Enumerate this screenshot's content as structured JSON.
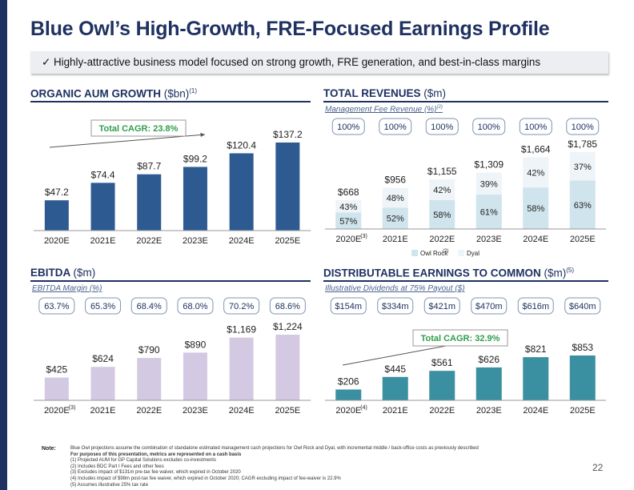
{
  "title": "Blue Owl’s High-Growth, FRE-Focused Earnings Profile",
  "banner": "✓ Highly-attractive business model focused on strong growth, FRE generation, and best-in-class margins",
  "colors": {
    "navy": "#1e3160",
    "bar_blue": "#2e5a92",
    "lavender": "#d3c9e3",
    "teal": "#3a8fa1",
    "owl_rock": "#cfe4ec",
    "dyal": "#eef4f8",
    "green": "#2e9e4a"
  },
  "sections": {
    "aum": {
      "title": "ORGANIC AUM GROWTH",
      "unit": "($bn)",
      "sup": "(1)"
    },
    "revenue": {
      "title": "TOTAL REVENUES",
      "unit": "($m)",
      "subhead": "Management Fee Revenue (%)",
      "subhead_sup": "(2)"
    },
    "ebitda": {
      "title": "EBITDA",
      "unit": "($m)",
      "subhead": "EBITDA Margin (%)"
    },
    "de": {
      "title": "DISTRIBUTABLE EARNINGS TO COMMON",
      "unit": "($m)",
      "sup": "(5)",
      "subhead": "Illustrative Dividends at 75% Payout ($)"
    }
  },
  "chart_data": [
    {
      "id": "aum",
      "type": "bar",
      "title": "ORGANIC AUM GROWTH ($bn)",
      "categories": [
        "2020E",
        "2021E",
        "2022E",
        "2023E",
        "2024E",
        "2025E"
      ],
      "values": [
        47.2,
        74.4,
        87.7,
        99.2,
        120.4,
        137.2
      ],
      "labels": [
        "$47.2",
        "$74.4",
        "$87.7",
        "$99.2",
        "$120.4",
        "$137.2"
      ],
      "ylim": [
        0,
        137.2
      ],
      "annotation": "Total CAGR: 23.8%"
    },
    {
      "id": "revenue",
      "type": "bar",
      "title": "TOTAL REVENUES ($m)",
      "categories": [
        "2020E",
        "2021E",
        "2022E",
        "2023E",
        "2024E",
        "2025E"
      ],
      "category_sup": [
        "(3)",
        "",
        "",
        "",
        "",
        ""
      ],
      "values": [
        668,
        956,
        1155,
        1309,
        1664,
        1785
      ],
      "labels": [
        "$668",
        "$956",
        "$1,155",
        "$1,309",
        "$1,664",
        "$1,785"
      ],
      "series": [
        {
          "name": "Owl Rock",
          "name_sup": "(2)",
          "values": [
            57,
            52,
            58,
            61,
            58,
            63
          ],
          "labels": [
            "57%",
            "52%",
            "58%",
            "61%",
            "58%",
            "63%"
          ]
        },
        {
          "name": "Dyal",
          "values": [
            43,
            48,
            42,
            39,
            42,
            37
          ],
          "labels": [
            "43%",
            "48%",
            "42%",
            "39%",
            "42%",
            "37%"
          ]
        }
      ],
      "mgmt_fee_pct": [
        "100%",
        "100%",
        "100%",
        "100%",
        "100%",
        "100%"
      ],
      "ylim": [
        0,
        1785
      ]
    },
    {
      "id": "ebitda",
      "type": "bar",
      "title": "EBITDA ($m)",
      "categories": [
        "2020E",
        "2021E",
        "2022E",
        "2023E",
        "2024E",
        "2025E"
      ],
      "category_sup": [
        "(3)",
        "",
        "",
        "",
        "",
        ""
      ],
      "values": [
        425,
        624,
        790,
        890,
        1169,
        1224
      ],
      "labels": [
        "$425",
        "$624",
        "$790",
        "$890",
        "$1,169",
        "$1,224"
      ],
      "margins": [
        "63.7%",
        "65.3%",
        "68.4%",
        "68.0%",
        "70.2%",
        "68.6%"
      ],
      "ylim": [
        0,
        1224
      ]
    },
    {
      "id": "de",
      "type": "bar",
      "title": "DISTRIBUTABLE EARNINGS TO COMMON ($m)",
      "categories": [
        "2020E",
        "2021E",
        "2022E",
        "2023E",
        "2024E",
        "2025E"
      ],
      "category_sup": [
        "(4)",
        "",
        "",
        "",
        "",
        ""
      ],
      "values": [
        206,
        445,
        561,
        626,
        821,
        853
      ],
      "labels": [
        "$206",
        "$445",
        "$561",
        "$626",
        "$821",
        "$853"
      ],
      "dividends": [
        "$154m",
        "$334m",
        "$421m",
        "$470m",
        "$616m",
        "$640m"
      ],
      "ylim": [
        0,
        853
      ],
      "annotation": "Total CAGR: 32.9%"
    }
  ],
  "note": {
    "label": "Note:",
    "lines": [
      "Blue Owl projections assume the combination of standalone estimated management cash projections for Owl Rock and Dyal, with incremental middle / back-office costs as previously described",
      "For purposes of this presentation, metrics are represented on a cash basis",
      "(1) Projected AUM for GP Capital Solutions excludes co-investments",
      "(2) Includes BDC Part I Fees and other fees",
      "(3) Excludes impact of $131m pre-tax fee waiver, which expired in October 2020",
      "(4) Includes impact of $98m post-tax fee waiver, which expired in October 2020; CAGR excluding impact of fee-waiver is 22.9%",
      "(5) Assumes illustrative 25% tax rate"
    ]
  },
  "page_number": "22"
}
